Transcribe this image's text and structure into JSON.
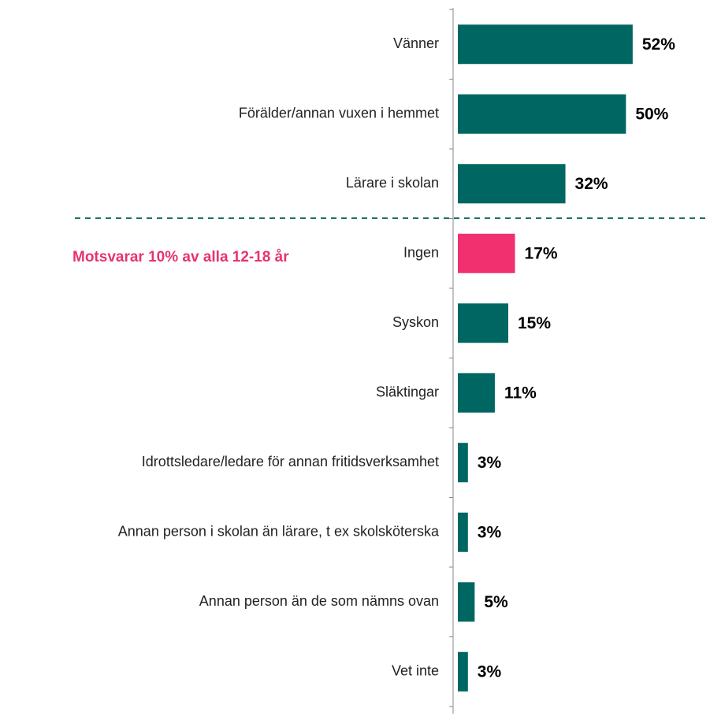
{
  "chart_data": {
    "type": "hbar",
    "annotation": "Motsvarar 10% av alla 12-18 år",
    "categories": [
      "Vänner",
      "Förälder/annan vuxen i hemmet",
      "Lärare i skolan",
      "Ingen",
      "Syskon",
      "Släktingar",
      "Idrottsledare/ledare för annan fritidsverksamhet",
      "Annan person i skolan än lärare, t ex skolsköterska",
      "Annan person än de som nämns ovan",
      "Vet inte"
    ],
    "values": [
      52,
      50,
      32,
      17,
      15,
      11,
      3,
      3,
      5,
      3
    ],
    "value_labels": [
      "52%",
      "50%",
      "32%",
      "17%",
      "15%",
      "11%",
      "3%",
      "3%",
      "5%",
      "3%"
    ],
    "colors": [
      "#006661",
      "#006661",
      "#006661",
      "#f0306f",
      "#006661",
      "#006661",
      "#006661",
      "#006661",
      "#006661",
      "#006661"
    ],
    "xlim": [
      0,
      75
    ]
  }
}
